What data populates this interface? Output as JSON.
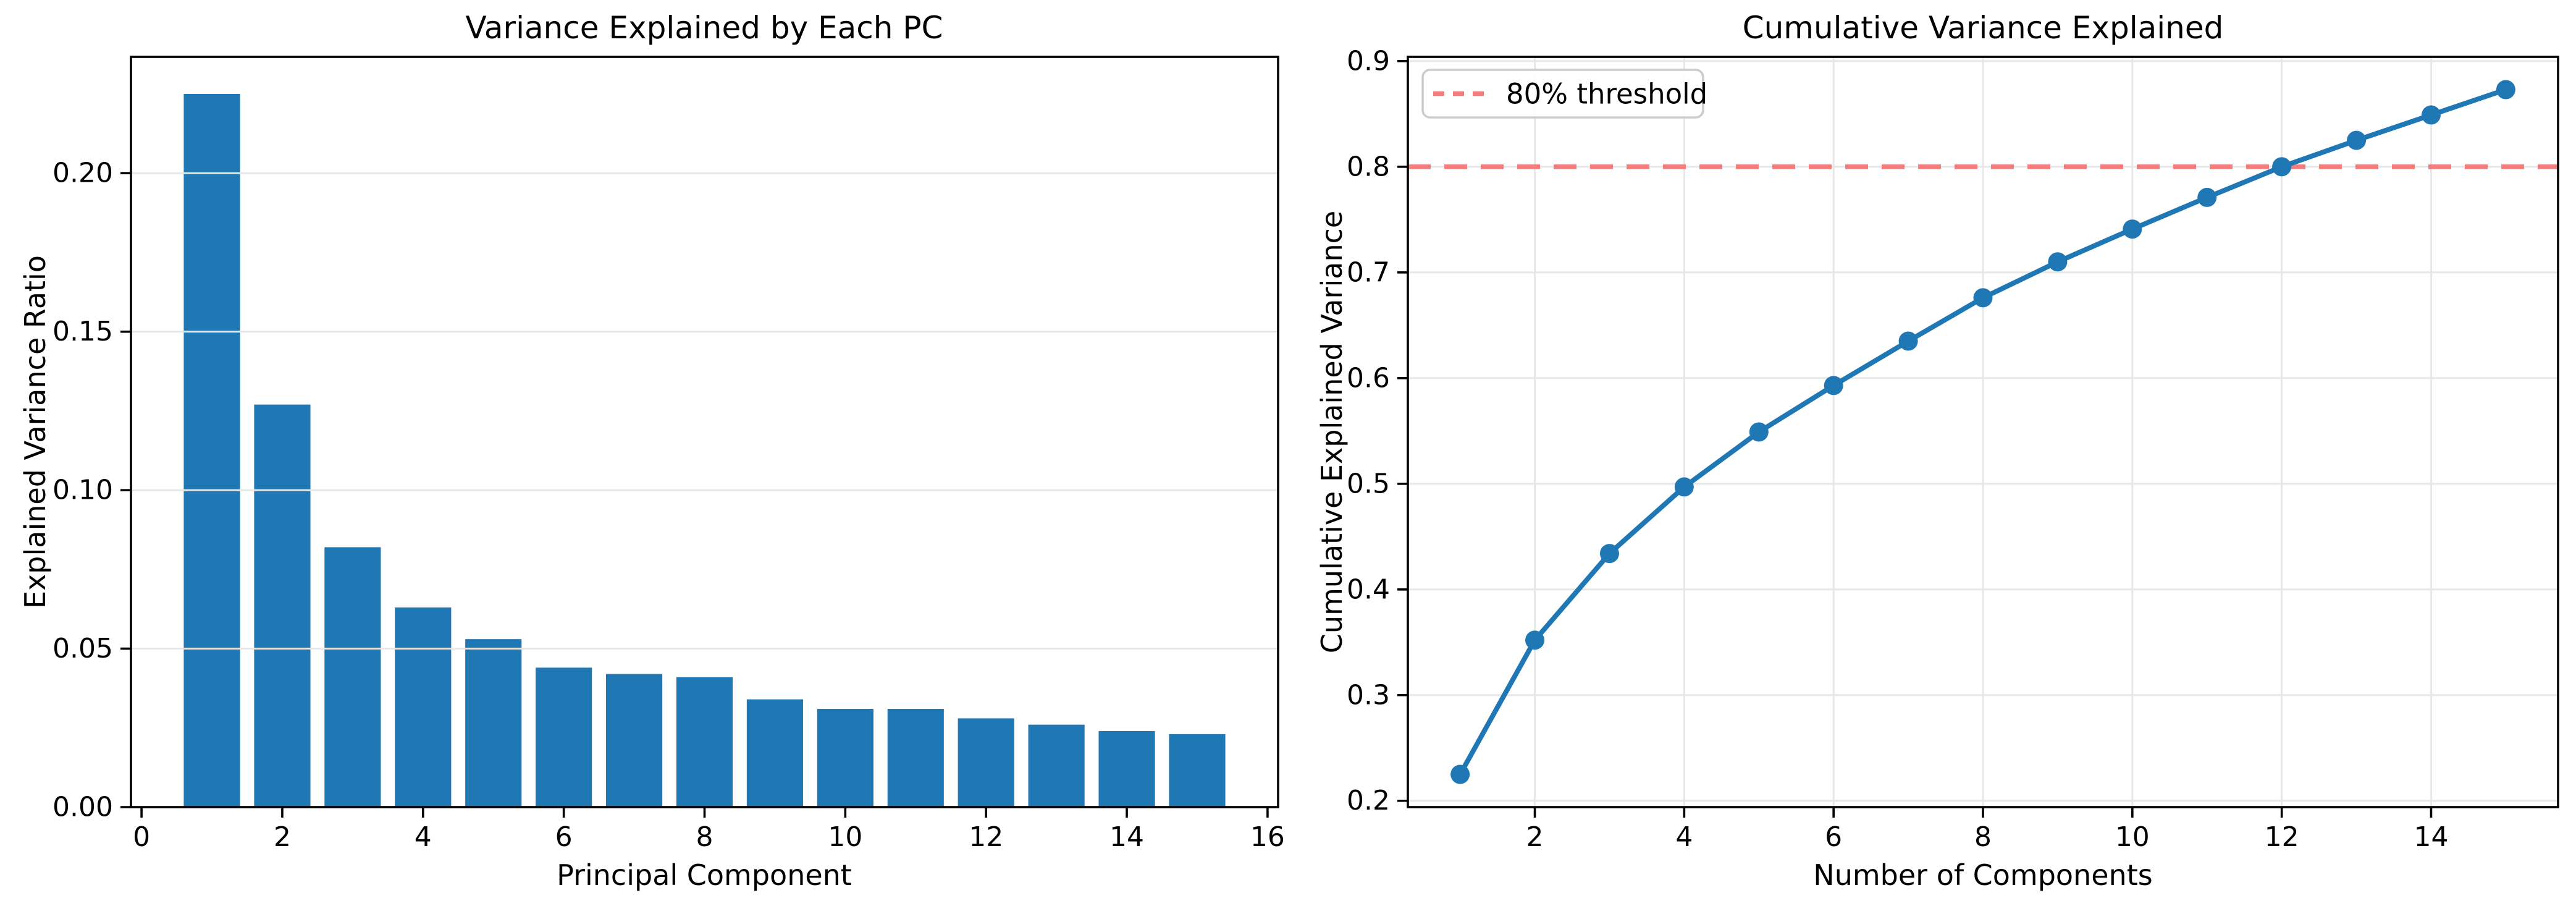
{
  "figure": {
    "background": "#ffffff",
    "text_color": "#000000",
    "spine_color": "#000000"
  },
  "chart_data": [
    {
      "id": "scree-bar-chart",
      "type": "bar",
      "title": "Variance Explained by Each PC",
      "xlabel": "Principal Component",
      "ylabel": "Explained Variance Ratio",
      "categories": [
        1,
        2,
        3,
        4,
        5,
        6,
        7,
        8,
        9,
        10,
        11,
        12,
        13,
        14,
        15
      ],
      "values": [
        0.225,
        0.127,
        0.082,
        0.063,
        0.053,
        0.044,
        0.042,
        0.041,
        0.034,
        0.031,
        0.031,
        0.028,
        0.026,
        0.024,
        0.023
      ],
      "bar_color": "#1f77b4",
      "bar_width": 0.8,
      "xlim": [
        -0.15,
        16.15
      ],
      "ylim": [
        0,
        0.2367
      ],
      "xticks": [
        0,
        2,
        4,
        6,
        8,
        10,
        12,
        14,
        16
      ],
      "ytick_values": [
        0,
        0.05,
        0.1,
        0.15,
        0.2
      ],
      "ytick_labels": [
        "0.00",
        "0.05",
        "0.10",
        "0.15",
        "0.20"
      ],
      "grid": "y",
      "grid_color": "#e7e7e7"
    },
    {
      "id": "cumulative-line-chart",
      "type": "line",
      "title": "Cumulative Variance Explained",
      "xlabel": "Number of Components",
      "ylabel": "Cumulative Explained Variance",
      "x": [
        1,
        2,
        3,
        4,
        5,
        6,
        7,
        8,
        9,
        10,
        11,
        12,
        13,
        14,
        15
      ],
      "values": [
        0.225,
        0.352,
        0.434,
        0.497,
        0.549,
        0.593,
        0.635,
        0.676,
        0.71,
        0.741,
        0.771,
        0.8,
        0.825,
        0.849,
        0.873
      ],
      "line_color": "#1f77b4",
      "marker": "circle-icon",
      "xlim": [
        0.3,
        15.7
      ],
      "ylim": [
        0.194,
        0.904
      ],
      "xticks": [
        2,
        4,
        6,
        8,
        10,
        12,
        14
      ],
      "ytick_values": [
        0.2,
        0.3,
        0.4,
        0.5,
        0.6,
        0.7,
        0.8,
        0.9
      ],
      "ytick_labels": [
        "0.2",
        "0.3",
        "0.4",
        "0.5",
        "0.6",
        "0.7",
        "0.8",
        "0.9"
      ],
      "grid": "both",
      "grid_color": "#e7e7e7",
      "threshold": {
        "value": 0.8,
        "label": "80% threshold",
        "color": "#f47c7c",
        "linestyle": "dashed"
      },
      "legend": {
        "position": "upper left",
        "entries": [
          "80% threshold"
        ],
        "border_color": "#cccccc",
        "background": "#ffffff"
      }
    }
  ]
}
